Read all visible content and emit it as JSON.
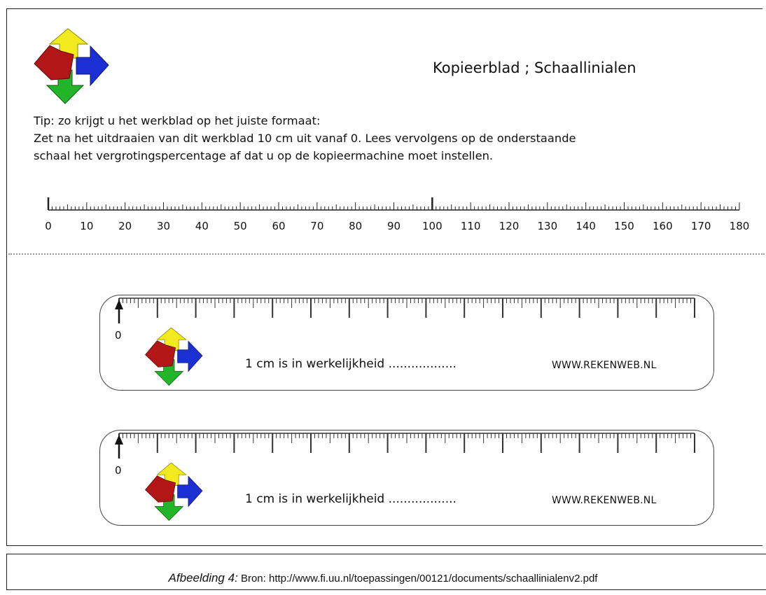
{
  "header": {
    "title": "Kopieerblad ;  Schaallinialen",
    "logo_icon": "colored-arrows-logo-icon"
  },
  "tip": {
    "line1": "Tip: zo krijgt u het werkblad op het juiste formaat:",
    "line2": "Zet na het uitdraaien van dit werkblad 10 cm uit vanaf 0. Lees vervolgens op de onderstaande",
    "line3": "schaal het vergrotingspercentage af dat u op de kopieermachine moet instellen."
  },
  "percentage_scale": {
    "labels": [
      "0",
      "10",
      "20",
      "30",
      "40",
      "50",
      "60",
      "70",
      "80",
      "90",
      "100",
      "110",
      "120",
      "130",
      "140",
      "150",
      "160",
      "170",
      "180"
    ]
  },
  "rulers": [
    {
      "zero_label": "0",
      "measure_text": "1 cm is in werkelijkheid",
      "dots": "..................",
      "website": "WWW.REKENWEB.NL"
    },
    {
      "zero_label": "0",
      "measure_text": "1 cm is in werkelijkheid",
      "dots": "..................",
      "website": "WWW.REKENWEB.NL"
    }
  ],
  "caption": {
    "label": "Afbeelding  4:",
    "text": " Bron: http://www.fi.uu.nl/toepassingen/00121/documents/schaallinialenv2.pdf"
  }
}
